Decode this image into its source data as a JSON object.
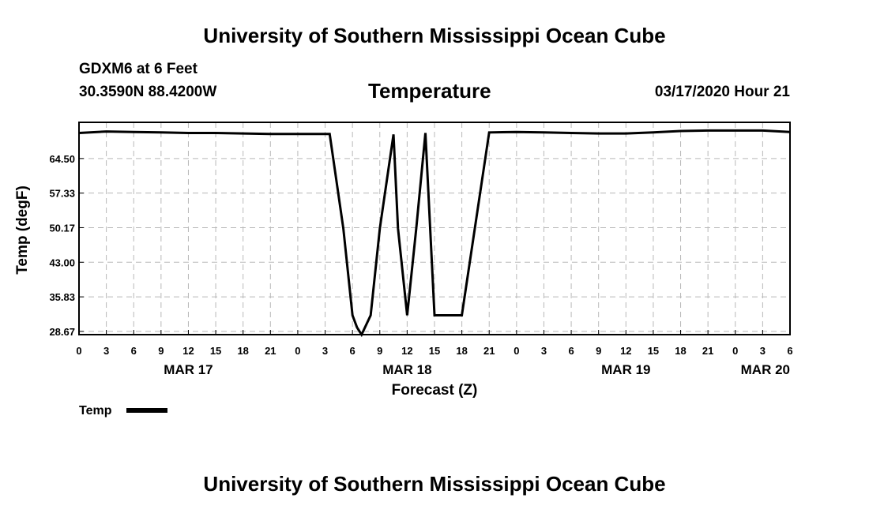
{
  "header": {
    "title": "University of Southern Mississippi Ocean Cube",
    "station": "GDXM6 at 6 Feet",
    "coords": "30.3590N 88.4200W",
    "timestamp": "03/17/2020 Hour 21"
  },
  "footer": {
    "title": "University of Southern Mississippi Ocean Cube"
  },
  "chart_data": {
    "type": "line",
    "title": "Temperature",
    "xlabel": "Forecast (Z)",
    "ylabel": "Temp (degF)",
    "ylim": [
      28.0,
      72.0
    ],
    "y_ticks": [
      "64.50",
      "57.33",
      "50.17",
      "43.00",
      "35.83",
      "28.67"
    ],
    "y_tick_values": [
      64.5,
      57.33,
      50.17,
      43.0,
      35.83,
      28.67
    ],
    "xlim_hours": [
      0,
      78
    ],
    "x_tick_hours": [
      0,
      3,
      6,
      9,
      12,
      15,
      18,
      21,
      24,
      27,
      30,
      33,
      36,
      39,
      42,
      45,
      48,
      51,
      54,
      57,
      60,
      63,
      66,
      69,
      72,
      75,
      78
    ],
    "x_tick_labels": [
      "0",
      "3",
      "6",
      "9",
      "12",
      "15",
      "18",
      "21",
      "0",
      "3",
      "6",
      "9",
      "12",
      "15",
      "18",
      "21",
      "0",
      "3",
      "6",
      "9",
      "12",
      "15",
      "18",
      "21",
      "0",
      "3",
      "6"
    ],
    "date_labels": [
      {
        "label": "MAR 17",
        "hour": 12
      },
      {
        "label": "MAR 18",
        "hour": 36
      },
      {
        "label": "MAR 19",
        "hour": 60
      },
      {
        "label": "MAR 20",
        "hour": 78
      }
    ],
    "grid": true,
    "legend": "bottom-left",
    "series": [
      {
        "name": "Temp",
        "color": "#000000",
        "x_hours": [
          0,
          3,
          6,
          9,
          12,
          15,
          18,
          21,
          24,
          27.5,
          29,
          30,
          30.5,
          31,
          32,
          33,
          34.5,
          35,
          36,
          37,
          38,
          39,
          40.5,
          42,
          45,
          48,
          51,
          54,
          57,
          60,
          63,
          66,
          69,
          72,
          75,
          78
        ],
        "y": [
          69.8,
          70.1,
          70.0,
          69.9,
          69.8,
          69.8,
          69.7,
          69.6,
          69.6,
          69.6,
          50.0,
          32.0,
          29.5,
          28.0,
          32.0,
          50.0,
          69.5,
          50.0,
          32.0,
          50.0,
          69.8,
          32.0,
          32.0,
          32.0,
          69.9,
          70.0,
          69.9,
          69.8,
          69.7,
          69.7,
          69.9,
          70.2,
          70.3,
          70.3,
          70.3,
          70.0
        ]
      }
    ]
  }
}
